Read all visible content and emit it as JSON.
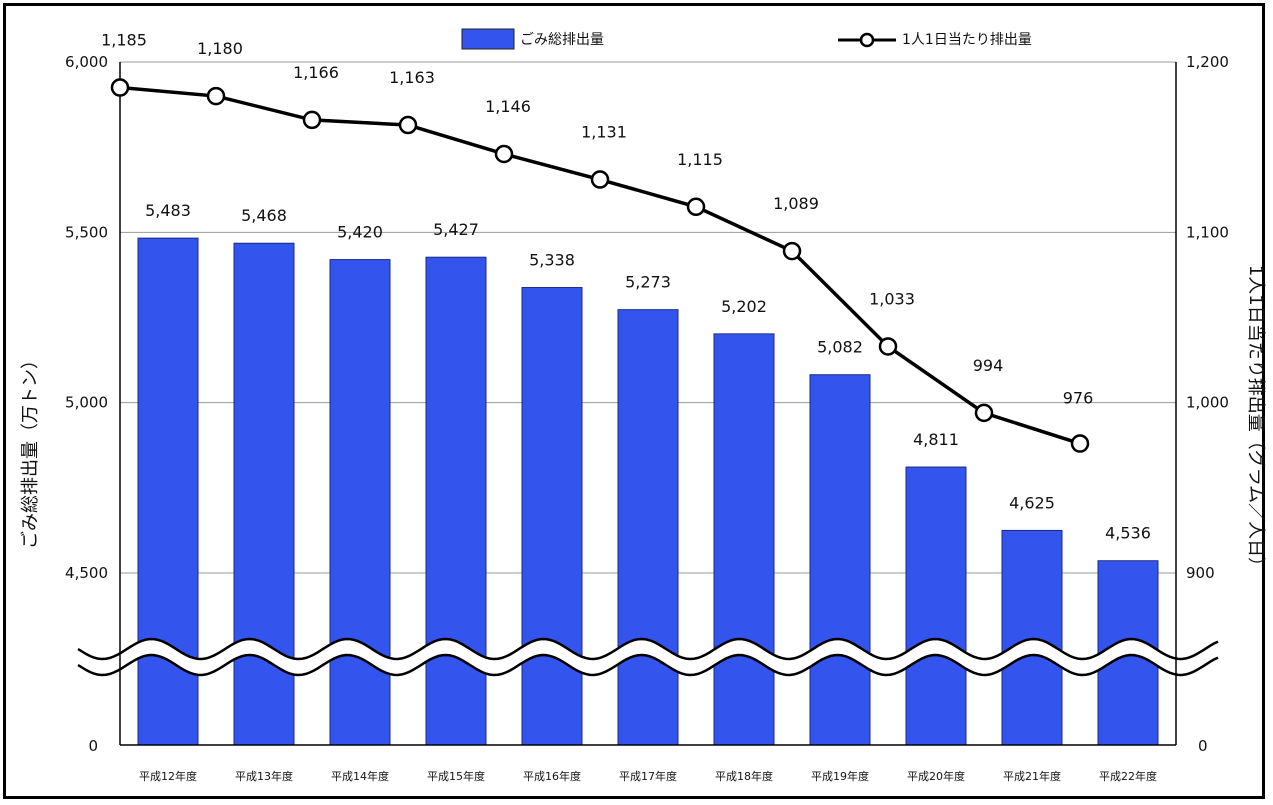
{
  "chart_data": {
    "type": "bar",
    "categories": [
      "平成12年度",
      "平成13年度",
      "平成14年度",
      "平成15年度",
      "平成16年度",
      "平成17年度",
      "平成18年度",
      "平成19年度",
      "平成20年度",
      "平成21年度",
      "平成22年度"
    ],
    "series": [
      {
        "name": "ごみ総排出量",
        "type": "bar",
        "axis": "left",
        "color": "#3355ee",
        "values": [
          5483,
          5468,
          5420,
          5427,
          5338,
          5273,
          5202,
          5082,
          4811,
          4625,
          4536
        ],
        "labels": [
          "5,483",
          "5,468",
          "5,420",
          "5,427",
          "5,338",
          "5,273",
          "5,202",
          "5,082",
          "4,811",
          "4,625",
          "4,536"
        ]
      },
      {
        "name": "1人1日当たり排出量",
        "type": "line",
        "axis": "right",
        "color": "#000000",
        "values": [
          1185,
          1180,
          1166,
          1163,
          1146,
          1131,
          1115,
          1089,
          1033,
          994,
          976
        ],
        "labels": [
          "1,185",
          "1,180",
          "1,166",
          "1,163",
          "1,146",
          "1,131",
          "1,115",
          "1,089",
          "1,033",
          "994",
          "976"
        ]
      }
    ],
    "left_axis": {
      "label": "ごみ総排出量（万トン）",
      "ylim": [
        4500,
        6000
      ],
      "ticks": [
        6000,
        5500,
        5000,
        4500
      ],
      "tick_labels": [
        "6,000",
        "5,500",
        "5,000",
        "4,500"
      ],
      "zero_label": "0",
      "break": true
    },
    "right_axis": {
      "label": "1人1日当たり排出量（グラム／人日）",
      "ylim": [
        900,
        1200
      ],
      "ticks": [
        1200,
        1100,
        1000,
        900
      ],
      "tick_labels": [
        "1,200",
        "1,100",
        "1,000",
        "900"
      ],
      "zero_label": "0",
      "break": true
    },
    "grid": true,
    "legend_position": "top"
  }
}
